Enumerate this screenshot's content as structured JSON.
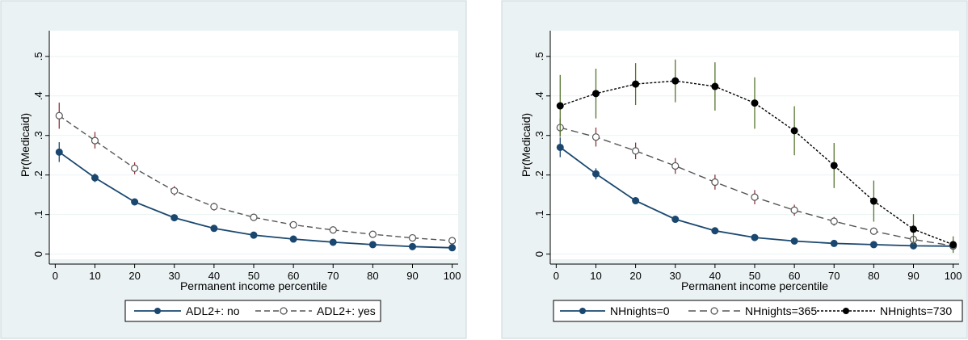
{
  "chart_data": [
    {
      "type": "line",
      "title": "",
      "xlabel": "Permanent income percentile",
      "ylabel": "Pr(Medicaid)",
      "x": [
        1,
        10,
        20,
        30,
        40,
        50,
        60,
        70,
        80,
        90,
        100
      ],
      "xticks": [
        "0",
        "10",
        "20",
        "30",
        "40",
        "50",
        "60",
        "70",
        "80",
        "90",
        "100"
      ],
      "xtick_values": [
        0,
        10,
        20,
        30,
        40,
        50,
        60,
        70,
        80,
        90,
        100
      ],
      "yticks": [
        "0",
        ".1",
        ".2",
        ".3",
        ".4",
        ".5"
      ],
      "ytick_values": [
        0,
        0.1,
        0.2,
        0.3,
        0.4,
        0.5
      ],
      "xlim": [
        -1.5,
        101.5
      ],
      "ylim": [
        -0.013,
        0.565
      ],
      "grid": true,
      "legend_position": "bottom",
      "series": [
        {
          "name": "ADL2+: no",
          "style": "solid",
          "marker": "filled",
          "color": "#1a476f",
          "ci_color": "#1a476f",
          "values": [
            0.258,
            0.193,
            0.132,
            0.092,
            0.065,
            0.048,
            0.038,
            0.03,
            0.024,
            0.019,
            0.016
          ],
          "ci_lower": [
            0.233,
            0.182,
            0.127,
            0.088,
            0.062,
            0.046,
            0.036,
            0.028,
            0.022,
            0.017,
            0.014
          ],
          "ci_upper": [
            0.283,
            0.204,
            0.137,
            0.096,
            0.068,
            0.05,
            0.04,
            0.032,
            0.026,
            0.021,
            0.018
          ]
        },
        {
          "name": "ADL2+: yes",
          "style": "dashed",
          "marker": "hollow",
          "color": "#555555",
          "ci_color": "#90353b",
          "values": [
            0.35,
            0.287,
            0.217,
            0.16,
            0.12,
            0.093,
            0.074,
            0.061,
            0.05,
            0.041,
            0.034
          ],
          "ci_lower": [
            0.317,
            0.267,
            0.202,
            0.148,
            0.11,
            0.084,
            0.066,
            0.053,
            0.042,
            0.033,
            0.025
          ],
          "ci_upper": [
            0.383,
            0.309,
            0.232,
            0.172,
            0.13,
            0.102,
            0.082,
            0.069,
            0.058,
            0.049,
            0.043
          ]
        }
      ]
    },
    {
      "type": "line",
      "title": "",
      "xlabel": "Permanent income percentile",
      "ylabel": "Pr(Medicaid)",
      "x": [
        1,
        10,
        20,
        30,
        40,
        50,
        60,
        70,
        80,
        90,
        100
      ],
      "xticks": [
        "0",
        "10",
        "20",
        "30",
        "40",
        "50",
        "60",
        "70",
        "80",
        "90",
        "100"
      ],
      "xtick_values": [
        0,
        10,
        20,
        30,
        40,
        50,
        60,
        70,
        80,
        90,
        100
      ],
      "yticks": [
        "0",
        ".1",
        ".2",
        ".3",
        ".4",
        ".5"
      ],
      "ytick_values": [
        0,
        0.1,
        0.2,
        0.3,
        0.4,
        0.5
      ],
      "xlim": [
        -1.5,
        101.5
      ],
      "ylim": [
        -0.013,
        0.565
      ],
      "grid": true,
      "legend_position": "bottom",
      "series": [
        {
          "name": "NHnights=0",
          "style": "solid",
          "marker": "filled",
          "color": "#1a476f",
          "ci_color": "#1a476f",
          "values": [
            0.27,
            0.203,
            0.135,
            0.088,
            0.059,
            0.042,
            0.033,
            0.027,
            0.024,
            0.021,
            0.02
          ],
          "ci_lower": [
            0.245,
            0.189,
            0.129,
            0.084,
            0.056,
            0.039,
            0.03,
            0.025,
            0.021,
            0.018,
            0.017
          ],
          "ci_upper": [
            0.295,
            0.217,
            0.141,
            0.092,
            0.062,
            0.045,
            0.036,
            0.029,
            0.027,
            0.024,
            0.023
          ]
        },
        {
          "name": "NHnights=365",
          "style": "longdash",
          "marker": "hollow",
          "color": "#555555",
          "ci_color": "#90353b",
          "values": [
            0.32,
            0.296,
            0.261,
            0.223,
            0.182,
            0.144,
            0.111,
            0.083,
            0.058,
            0.037,
            0.021
          ],
          "ci_lower": [
            0.297,
            0.272,
            0.24,
            0.203,
            0.163,
            0.126,
            0.097,
            0.072,
            0.049,
            0.03,
            0.016
          ],
          "ci_upper": [
            0.343,
            0.32,
            0.282,
            0.243,
            0.201,
            0.162,
            0.125,
            0.094,
            0.067,
            0.044,
            0.026
          ]
        },
        {
          "name": "NHnights=730",
          "style": "dotted",
          "marker": "black",
          "color": "#000000",
          "ci_color": "#55752f",
          "values": [
            0.375,
            0.406,
            0.43,
            0.438,
            0.424,
            0.382,
            0.312,
            0.224,
            0.134,
            0.063,
            0.024
          ],
          "ci_lower": [
            0.297,
            0.343,
            0.377,
            0.384,
            0.363,
            0.317,
            0.25,
            0.167,
            0.082,
            0.025,
            0.003
          ],
          "ci_upper": [
            0.453,
            0.469,
            0.483,
            0.492,
            0.485,
            0.447,
            0.374,
            0.281,
            0.186,
            0.101,
            0.045
          ]
        }
      ]
    }
  ]
}
